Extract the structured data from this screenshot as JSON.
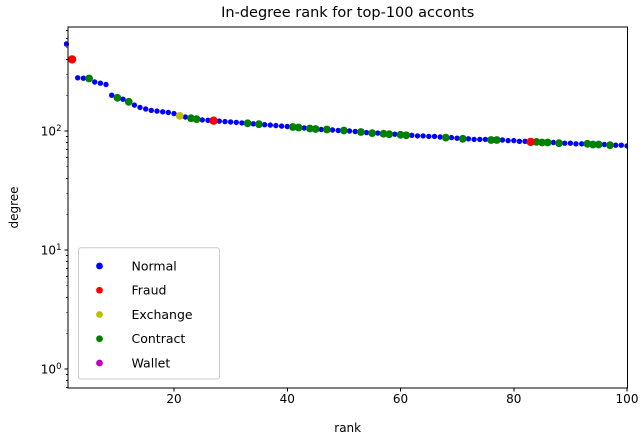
{
  "title": "In-degree rank for top-100 acconts",
  "axes": {
    "xlabel": "rank",
    "ylabel": "degree",
    "x_ticks": [
      20,
      40,
      60,
      80,
      100
    ],
    "y_major_ticks": [
      {
        "base": "10",
        "exp": "2",
        "value": 100
      },
      {
        "base": "10",
        "exp": "1",
        "value": 10
      },
      {
        "base": "10",
        "exp": "0",
        "value": 1
      }
    ],
    "y_scale": "log",
    "spine_color": "#000000"
  },
  "legend": {
    "position": "lower-left",
    "items": [
      {
        "label": "Normal",
        "color": "#0000ff"
      },
      {
        "label": "Fraud",
        "color": "#ff0000"
      },
      {
        "label": "Exchange",
        "color": "#bfbf00"
      },
      {
        "label": "Contract",
        "color": "#008000"
      },
      {
        "label": "Wallet",
        "color": "#bf00bf"
      }
    ]
  },
  "chart_data": {
    "type": "scatter",
    "title": "In-degree rank for top-100 acconts",
    "xlabel": "rank",
    "ylabel": "degree",
    "x_range": [
      0,
      100
    ],
    "y_scale": "log",
    "y_range_approx": [
      0.7,
      750
    ],
    "grid": false,
    "legend_position": "lower-left",
    "series": [
      {
        "name": "Normal",
        "color": "#0000ff",
        "points": [
          [
            1,
            538
          ],
          [
            3,
            280
          ],
          [
            4,
            278
          ],
          [
            6,
            258
          ],
          [
            7,
            252
          ],
          [
            8,
            246
          ],
          [
            9,
            200
          ],
          [
            11,
            185
          ],
          [
            13,
            165
          ],
          [
            14,
            158
          ],
          [
            15,
            153
          ],
          [
            16,
            149
          ],
          [
            17,
            147
          ],
          [
            18,
            145
          ],
          [
            19,
            143
          ],
          [
            20,
            140
          ],
          [
            22,
            131
          ],
          [
            25,
            124
          ],
          [
            26,
            123
          ],
          [
            28,
            121
          ],
          [
            29,
            120
          ],
          [
            30,
            119
          ],
          [
            31,
            118
          ],
          [
            32,
            117
          ],
          [
            34,
            115
          ],
          [
            36,
            113
          ],
          [
            37,
            112
          ],
          [
            38,
            111
          ],
          [
            39,
            110
          ],
          [
            40,
            109
          ],
          [
            43,
            106
          ],
          [
            46,
            103
          ],
          [
            48,
            102
          ],
          [
            49,
            101
          ],
          [
            51,
            100
          ],
          [
            52,
            99
          ],
          [
            54,
            97
          ],
          [
            56,
            96
          ],
          [
            59,
            94
          ],
          [
            62,
            92
          ],
          [
            63,
            91
          ],
          [
            64,
            91
          ],
          [
            65,
            90
          ],
          [
            66,
            90
          ],
          [
            67,
            89
          ],
          [
            69,
            88
          ],
          [
            70,
            87
          ],
          [
            72,
            86
          ],
          [
            73,
            85
          ],
          [
            74,
            85
          ],
          [
            75,
            85
          ],
          [
            78,
            84
          ],
          [
            79,
            83
          ],
          [
            80,
            83
          ],
          [
            81,
            82
          ],
          [
            82,
            82
          ],
          [
            87,
            80
          ],
          [
            89,
            79
          ],
          [
            90,
            79
          ],
          [
            91,
            78
          ],
          [
            92,
            78
          ],
          [
            96,
            77
          ],
          [
            98,
            76
          ],
          [
            99,
            76
          ],
          [
            100,
            75
          ]
        ]
      },
      {
        "name": "Fraud",
        "color": "#ff0000",
        "points": [
          [
            2,
            400
          ],
          [
            27,
            122
          ],
          [
            83,
            81
          ]
        ]
      },
      {
        "name": "Exchange",
        "color": "#bfbf00",
        "points": [
          [
            21,
            134
          ]
        ]
      },
      {
        "name": "Contract",
        "color": "#008000",
        "points": [
          [
            5,
            276
          ],
          [
            10,
            190
          ],
          [
            12,
            176
          ],
          [
            23,
            128
          ],
          [
            24,
            126
          ],
          [
            33,
            116
          ],
          [
            35,
            114
          ],
          [
            41,
            108
          ],
          [
            42,
            107
          ],
          [
            44,
            105
          ],
          [
            45,
            104
          ],
          [
            47,
            103
          ],
          [
            50,
            101
          ],
          [
            53,
            98
          ],
          [
            55,
            96
          ],
          [
            57,
            95
          ],
          [
            58,
            94
          ],
          [
            60,
            93
          ],
          [
            61,
            92
          ],
          [
            68,
            88
          ],
          [
            71,
            86
          ],
          [
            76,
            84
          ],
          [
            77,
            84
          ],
          [
            84,
            81
          ],
          [
            85,
            80
          ],
          [
            86,
            80
          ],
          [
            88,
            79
          ],
          [
            93,
            78
          ],
          [
            94,
            77
          ],
          [
            95,
            77
          ],
          [
            97,
            76
          ]
        ]
      },
      {
        "name": "Wallet",
        "color": "#bf00bf",
        "points": []
      }
    ]
  }
}
